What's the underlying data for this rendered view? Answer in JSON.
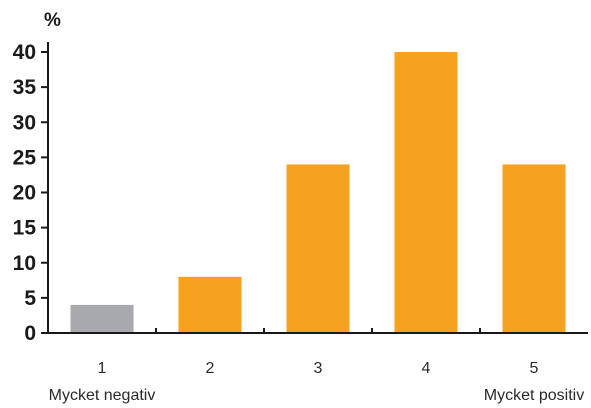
{
  "chart_data": {
    "type": "bar",
    "categories": [
      "1",
      "2",
      "3",
      "4",
      "5"
    ],
    "values": [
      4,
      8,
      24,
      40,
      24
    ],
    "ylabel": "%",
    "ylim": [
      0,
      40
    ],
    "yticks": [
      0,
      5,
      10,
      15,
      20,
      25,
      30,
      35,
      40
    ],
    "category_sublabels": [
      {
        "category": "1",
        "text": "Mycket negativ"
      },
      {
        "category": "5",
        "text": "Mycket positiv"
      }
    ],
    "colors": {
      "bar": "#F5A31F",
      "bar_first": "#A8A9AD",
      "axis": "#1a1a1a"
    },
    "grid": false,
    "legend": "none"
  }
}
